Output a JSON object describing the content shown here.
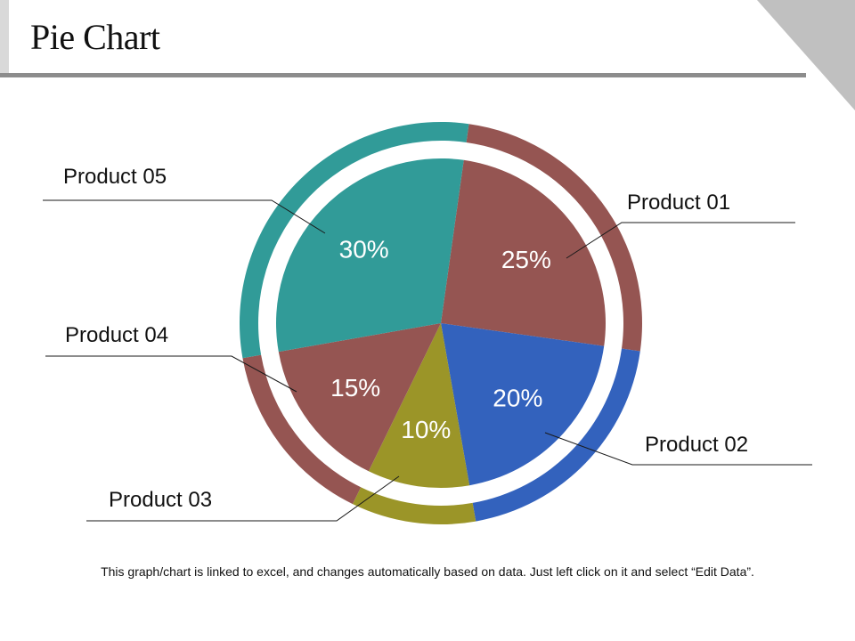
{
  "slide": {
    "title": "Pie Chart",
    "footer": "This graph/chart is linked to excel, and changes automatically based on data. Just left click on it and select “Edit Data”."
  },
  "colors": {
    "product01": "#955552",
    "product02": "#3362bd",
    "product03": "#9b9528",
    "product04": "#955552",
    "product05": "#319b98",
    "header_line": "#8c8c8c",
    "corner": "#c0c0c0"
  },
  "chart_data": {
    "type": "pie",
    "title": "Pie Chart",
    "categories": [
      "Product 01",
      "Product 02",
      "Product 03",
      "Product 04",
      "Product 05"
    ],
    "values": [
      25,
      20,
      10,
      15,
      30
    ],
    "labels": [
      "25%",
      "20%",
      "10%",
      "15%",
      "30%"
    ],
    "unit": "%",
    "start_angle_deg": 8,
    "direction": "clockwise",
    "outer_ring": true
  }
}
